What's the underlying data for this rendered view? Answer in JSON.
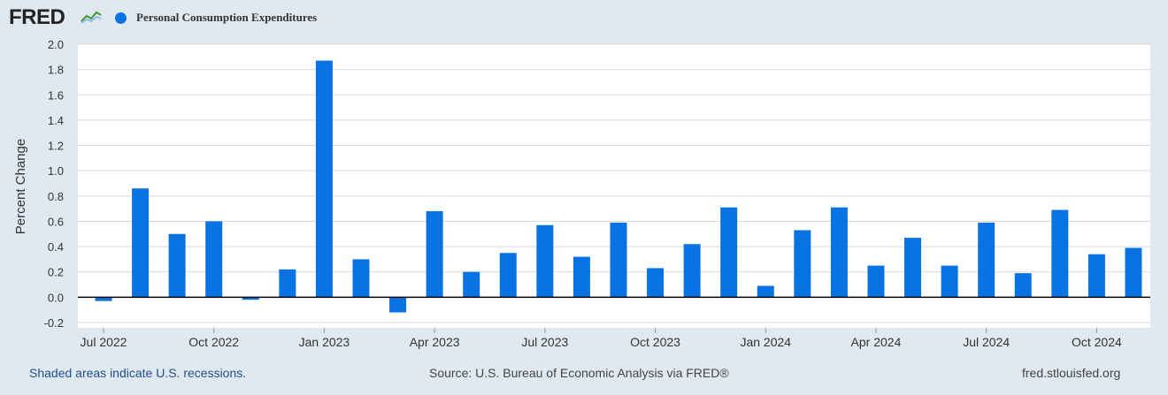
{
  "header": {
    "logo_text": "FRED",
    "series_name": "Personal Consumption Expenditures",
    "series_color": "#0a73e3"
  },
  "footer": {
    "recession_note": "Shaded areas indicate U.S. recessions.",
    "source": "Source: U.S. Bureau of Economic Analysis via FRED®",
    "site": "fred.stlouisfed.org"
  },
  "chart_data": {
    "type": "bar",
    "ylabel": "Percent Change",
    "ylim": [
      -0.2,
      2.0
    ],
    "yticks": [
      -0.2,
      0.0,
      0.2,
      0.4,
      0.6,
      0.8,
      1.0,
      1.2,
      1.4,
      1.6,
      1.8,
      2.0
    ],
    "ytick_labels": [
      "-0.2",
      "0.0",
      "0.2",
      "0.4",
      "0.6",
      "0.8",
      "1.0",
      "1.2",
      "1.4",
      "1.6",
      "1.8",
      "2.0"
    ],
    "x_tick_labels": [
      {
        "label": "Jul 2022",
        "index": 0
      },
      {
        "label": "Oct 2022",
        "index": 3
      },
      {
        "label": "Jan 2023",
        "index": 6
      },
      {
        "label": "Apr 2023",
        "index": 9
      },
      {
        "label": "Jul 2023",
        "index": 12
      },
      {
        "label": "Oct 2023",
        "index": 15
      },
      {
        "label": "Jan 2024",
        "index": 18
      },
      {
        "label": "Apr 2024",
        "index": 21
      },
      {
        "label": "Jul 2024",
        "index": 24
      },
      {
        "label": "Oct 2024",
        "index": 27
      }
    ],
    "categories": [
      "2022-07",
      "2022-08",
      "2022-09",
      "2022-10",
      "2022-11",
      "2022-12",
      "2023-01",
      "2023-02",
      "2023-03",
      "2023-04",
      "2023-05",
      "2023-06",
      "2023-07",
      "2023-08",
      "2023-09",
      "2023-10",
      "2023-11",
      "2023-12",
      "2024-01",
      "2024-02",
      "2024-03",
      "2024-04",
      "2024-05",
      "2024-06",
      "2024-07",
      "2024-08",
      "2024-09",
      "2024-10",
      "2024-11"
    ],
    "series": [
      {
        "name": "Personal Consumption Expenditures",
        "color": "#0a73e3",
        "values": [
          -0.03,
          0.86,
          0.5,
          0.6,
          -0.02,
          0.22,
          1.87,
          0.3,
          -0.12,
          0.68,
          0.2,
          0.35,
          0.57,
          0.32,
          0.59,
          0.23,
          0.42,
          0.71,
          0.09,
          0.53,
          0.71,
          0.25,
          0.47,
          0.25,
          0.59,
          0.19,
          0.69,
          0.34,
          0.39
        ]
      }
    ],
    "grid": true,
    "legend": "top-left"
  }
}
